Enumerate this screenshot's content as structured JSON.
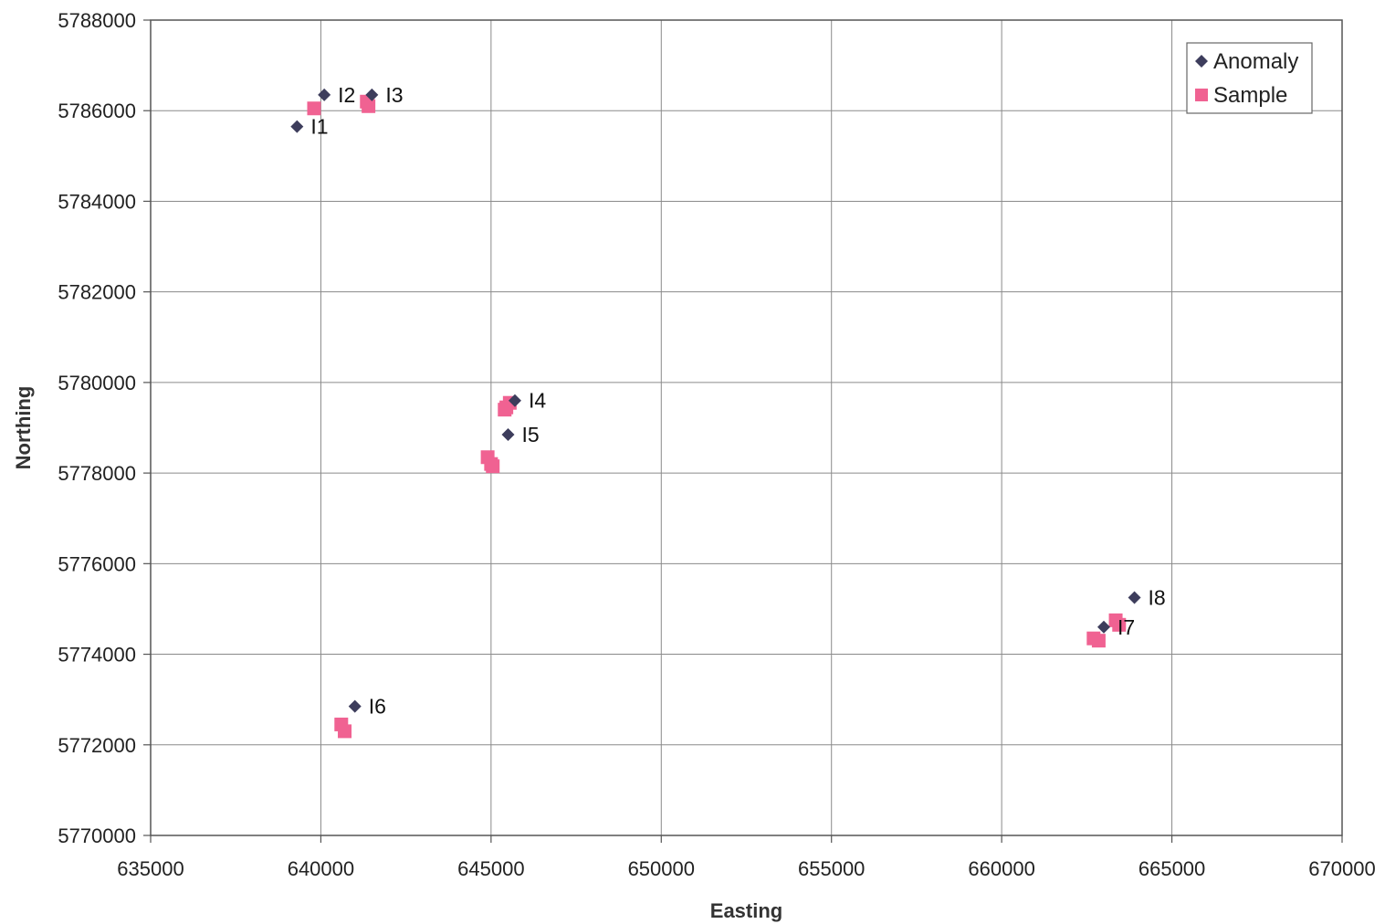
{
  "chart_data": {
    "type": "scatter",
    "title": "",
    "xlabel": "Easting",
    "ylabel": "Northing",
    "xlim": [
      635000,
      670000
    ],
    "ylim": [
      5770000,
      5788000
    ],
    "x_ticks": [
      635000,
      640000,
      645000,
      650000,
      655000,
      660000,
      665000,
      670000
    ],
    "y_ticks": [
      5770000,
      5772000,
      5774000,
      5776000,
      5778000,
      5780000,
      5782000,
      5784000,
      5786000,
      5788000
    ],
    "grid": true,
    "legend_position": "top-right",
    "series": [
      {
        "name": "Anomaly",
        "marker": "diamond",
        "color": "#3d3d5c",
        "points": [
          {
            "x": 639300,
            "y": 5785650,
            "label": "I1"
          },
          {
            "x": 640100,
            "y": 5786350,
            "label": "I2"
          },
          {
            "x": 641500,
            "y": 5786350,
            "label": "I3"
          },
          {
            "x": 645700,
            "y": 5779600,
            "label": "I4"
          },
          {
            "x": 645500,
            "y": 5778850,
            "label": "I5"
          },
          {
            "x": 641000,
            "y": 5772850,
            "label": "I6"
          },
          {
            "x": 663000,
            "y": 5774600,
            "label": "I7"
          },
          {
            "x": 663900,
            "y": 5775250,
            "label": "I8"
          }
        ]
      },
      {
        "name": "Sample",
        "marker": "square",
        "color": "#f06292",
        "points": [
          {
            "x": 639800,
            "y": 5786050
          },
          {
            "x": 641350,
            "y": 5786200
          },
          {
            "x": 641400,
            "y": 5786100
          },
          {
            "x": 645450,
            "y": 5779450
          },
          {
            "x": 645550,
            "y": 5779550
          },
          {
            "x": 645400,
            "y": 5779400
          },
          {
            "x": 644900,
            "y": 5778350
          },
          {
            "x": 645000,
            "y": 5778200
          },
          {
            "x": 645050,
            "y": 5778150
          },
          {
            "x": 640600,
            "y": 5772450
          },
          {
            "x": 640700,
            "y": 5772300
          },
          {
            "x": 662700,
            "y": 5774350
          },
          {
            "x": 662850,
            "y": 5774300
          },
          {
            "x": 663350,
            "y": 5774750
          },
          {
            "x": 663450,
            "y": 5774650
          }
        ]
      }
    ]
  }
}
